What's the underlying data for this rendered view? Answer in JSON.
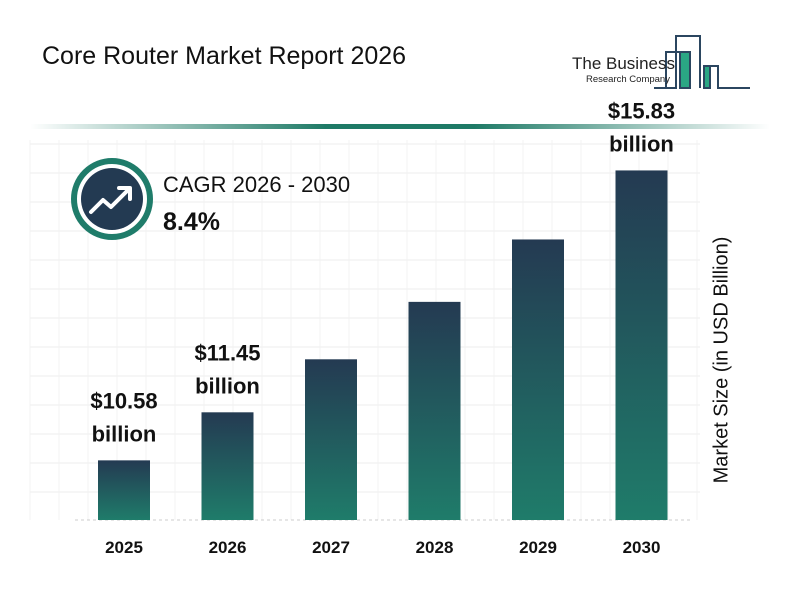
{
  "header": {
    "title": "Core Router Market Report 2026"
  },
  "logo": {
    "line1": "The Business",
    "line2": "Research Company"
  },
  "cagr": {
    "label": "CAGR 2026 - 2030",
    "value": "8.4%",
    "icon": "trend-up-arrow-icon"
  },
  "colors": {
    "bar_top": "#243a52",
    "bar_bottom": "#1f7c6a",
    "accent": "#1e7a66",
    "icon_bg": "#233a52"
  },
  "chart_data": {
    "type": "bar",
    "title": "Core Router Market Report 2026",
    "ylabel": "Market Size (in USD Billion)",
    "xlabel": "",
    "categories": [
      "2025",
      "2026",
      "2027",
      "2028",
      "2029",
      "2030"
    ],
    "values": [
      10.58,
      11.45,
      12.41,
      13.45,
      14.58,
      15.83
    ],
    "data_labels": [
      {
        "index": 0,
        "line1": "$10.58",
        "line2": "billion"
      },
      {
        "index": 1,
        "line1": "$11.45",
        "line2": "billion"
      },
      {
        "index": 5,
        "line1": "$15.83",
        "line2": "billion"
      }
    ],
    "ylim": [
      9.5,
      16.2
    ],
    "grid": true,
    "legend": "none"
  }
}
